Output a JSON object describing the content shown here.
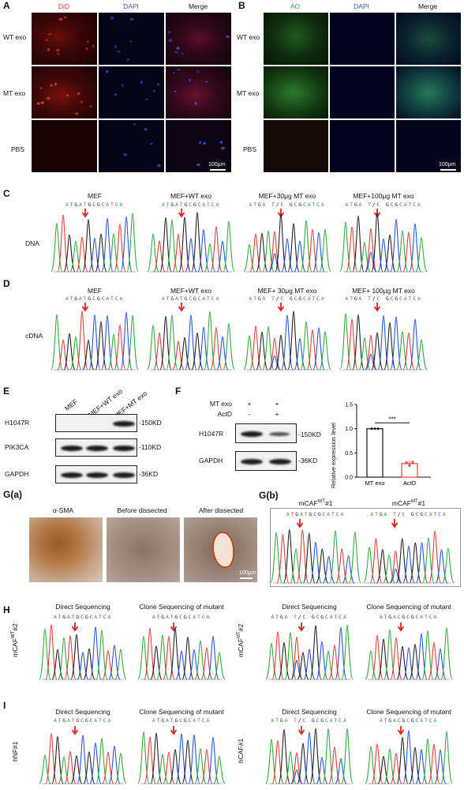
{
  "panelA": {
    "label": "A",
    "columns": [
      "DiD",
      "DAPI",
      "Merge"
    ],
    "rows": [
      "WT exo",
      "MT exo",
      "PBS"
    ],
    "scale": "100μm",
    "colors": {
      "did": "#e23a2e",
      "dapi": "#3b5bd6"
    }
  },
  "panelB": {
    "label": "B",
    "columns": [
      "AO",
      "DAPI",
      "Merge"
    ],
    "rows": [
      "WT exo",
      "MT exo",
      "PBS"
    ],
    "scale": "100μm",
    "colors": {
      "ao": "#37c84a",
      "dapi": "#3b5bd6"
    }
  },
  "panelC": {
    "label": "C",
    "row_label": "DNA",
    "titles": [
      "MEF",
      "MEF+WT exo",
      "MEF+30μg MT exo",
      "MEF+100μg MT exo"
    ],
    "sequences": [
      "ATGATGCGCATCA",
      "ATGATGCGCATCA",
      "ATGA T/C GCGCATCA",
      "ATGA T/C GCGCATCA"
    ]
  },
  "panelD": {
    "label": "D",
    "row_label": "cDNA",
    "titles": [
      "MEF",
      "MEF+WT exo",
      "MEF+ 30μg MT exo",
      "MEF+ 100μg MT exo"
    ],
    "sequences": [
      "ATGATGCGCATCA",
      "ATGATGCGCATCA",
      "ATGA T/C GCGCATCA",
      "ATGA T/C GCGCATCA"
    ]
  },
  "panelE": {
    "label": "E",
    "lanes": [
      "MEF",
      "MEF+WT exo",
      "MEF+MT exo"
    ],
    "rows": [
      "H1047R",
      "PIK3CA",
      "GAPDH"
    ],
    "sizes": [
      "-150KD",
      "-110KD",
      "-36KD"
    ]
  },
  "panelF": {
    "label": "F",
    "treatments": [
      {
        "name": "MT exo",
        "values": [
          "+",
          "+"
        ]
      },
      {
        "name": "ActD",
        "values": [
          "-",
          "+"
        ]
      }
    ],
    "rows": [
      "H1047R",
      "GAPDH"
    ],
    "sizes": [
      "-150KD",
      "-36KD"
    ],
    "chart_data": {
      "type": "bar",
      "categories": [
        "MT exo",
        "ActD"
      ],
      "values": [
        1.0,
        0.28
      ],
      "ylabel": "Relative expression level",
      "ylim": [
        0.0,
        1.5
      ],
      "yticks": [
        "0.0",
        "0.5",
        "1.0",
        "1.5"
      ],
      "significance": "***",
      "colors": {
        "bar2": "#e8443a"
      }
    }
  },
  "panelGa": {
    "label": "G(a)",
    "titles": [
      "α-SMA",
      "Before dissected",
      "After dissected"
    ],
    "scale": "100μm"
  },
  "panelGb": {
    "label": "G(b)",
    "titles": [
      "mCAF",
      "mCAF"
    ],
    "title_sup": [
      "WT",
      "MT"
    ],
    "title_suffix": "#1",
    "sequences": [
      "ATGATGCGCATCA",
      "ATGA T/C GCGCATCA"
    ]
  },
  "panelH": {
    "label": "H",
    "row_labels": [
      "mCAF",
      "mCAF"
    ],
    "row_sup": [
      "WT",
      "MT"
    ],
    "row_suffix": "#2",
    "titles": [
      "Direct Sequencing",
      "Clone Sequencing of mutant",
      "Direct Sequencing",
      "Clone Sequencing of mutant"
    ],
    "sequences": [
      "ATGATGCGCATCA",
      "ATGATGCGCATCA",
      "ATGA T/C GCGCATCA",
      "ATGACGCGCATCA"
    ]
  },
  "panelI": {
    "label": "I",
    "row_labels": [
      "hNF#1",
      "hCAF#1"
    ],
    "titles": [
      "Direct Sequencing",
      "Clone Sequencing of mutant",
      "Direct Sequencing",
      "Clone Sequencing of mutant"
    ],
    "sequences": [
      "ATGATGCGCATCA",
      "ATGATGCGCATCA",
      "ATGA T/C GCGCATCA",
      "ATGACGCGCATCA"
    ]
  }
}
